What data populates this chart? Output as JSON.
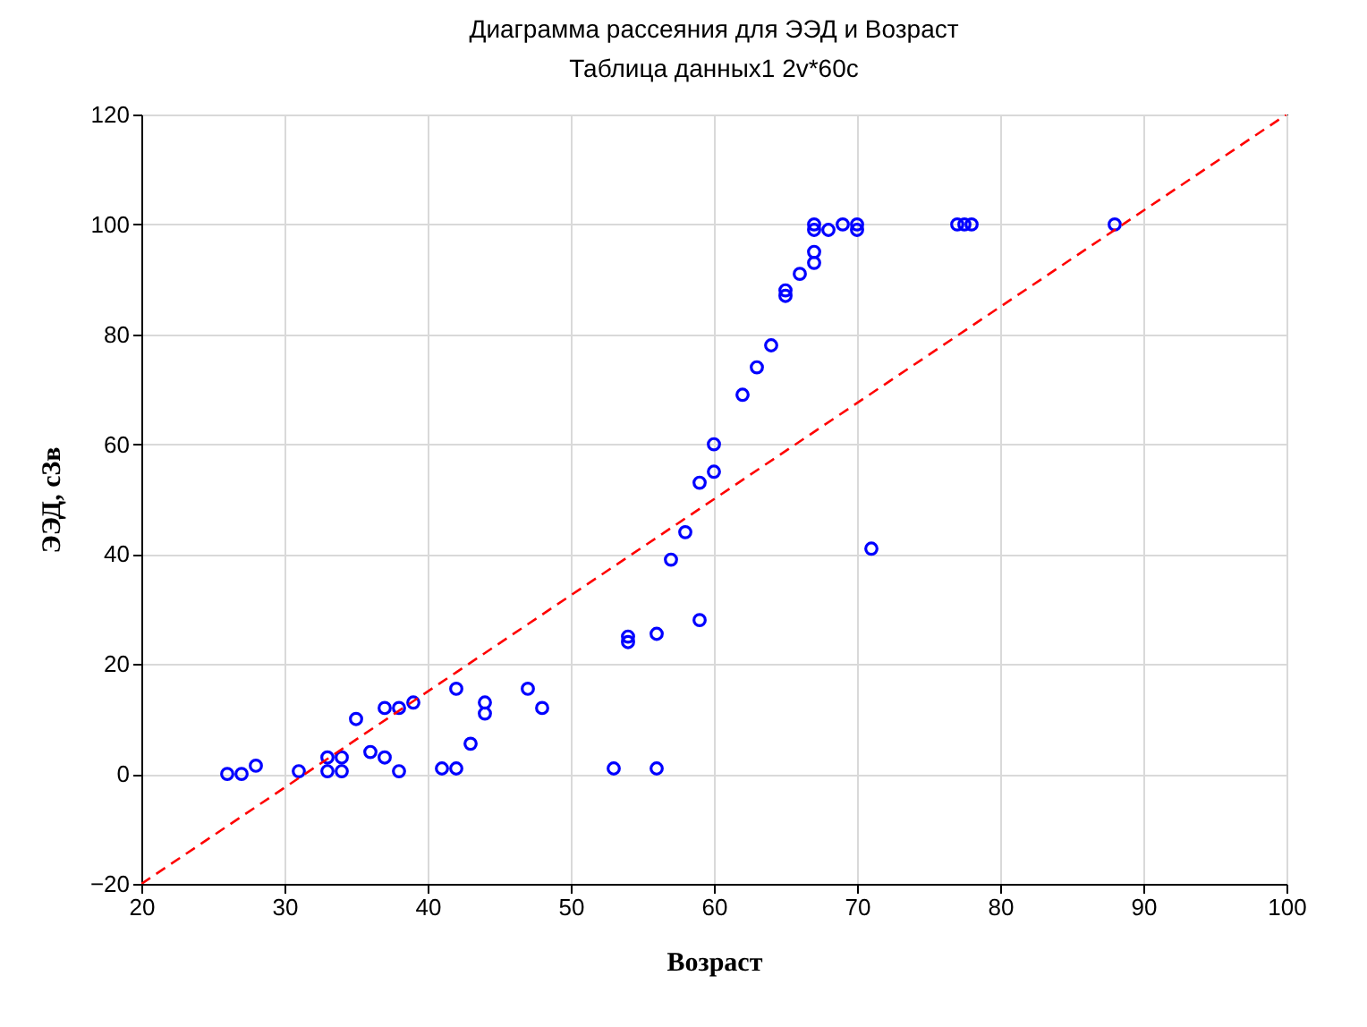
{
  "chart_data": {
    "type": "scatter",
    "title": "Диаграмма рассеяния для ЭЭД и Возраст",
    "subtitle": "Таблица данных1 2v*60c",
    "xlabel": "Возраст",
    "ylabel": "ЭЭД, сЗв",
    "xlim": [
      20,
      100
    ],
    "xticks": [
      20,
      30,
      40,
      50,
      60,
      70,
      80,
      90,
      100
    ],
    "ylim": [
      -20,
      120
    ],
    "yticks": [
      -20,
      0,
      20,
      40,
      60,
      80,
      100,
      120
    ],
    "grid": true,
    "marker": "circle",
    "series": [
      {
        "color": "#0000ff",
        "x": [
          26,
          27,
          28,
          31,
          33,
          33,
          34,
          34,
          35,
          36,
          37,
          37,
          38,
          38,
          39,
          41,
          42,
          42,
          43,
          44,
          44,
          47,
          48,
          53,
          54,
          54,
          56,
          56,
          57,
          58,
          59,
          59,
          60,
          60,
          62,
          63,
          64,
          65,
          65,
          66,
          67,
          67,
          67,
          67,
          68,
          69,
          70,
          70,
          71,
          77,
          77.5,
          78,
          88
        ],
        "values": [
          0,
          0,
          1.5,
          0.5,
          0.5,
          3,
          0.5,
          3,
          10,
          4,
          12,
          3,
          12,
          0.5,
          13,
          1,
          1,
          15.5,
          5.5,
          11,
          13,
          15.5,
          12,
          1,
          24,
          25,
          25.5,
          1,
          39,
          44,
          28,
          53,
          55,
          60,
          69,
          74,
          78,
          87,
          88,
          91,
          93,
          95,
          99,
          100,
          99,
          100,
          99,
          100,
          41,
          100,
          100,
          100,
          100
        ]
      },
      {
        "type": "line",
        "color": "#ff0000",
        "line_style": "dashed",
        "marker": "none",
        "x": [
          20,
          100
        ],
        "values": [
          -20,
          120
        ]
      }
    ]
  }
}
